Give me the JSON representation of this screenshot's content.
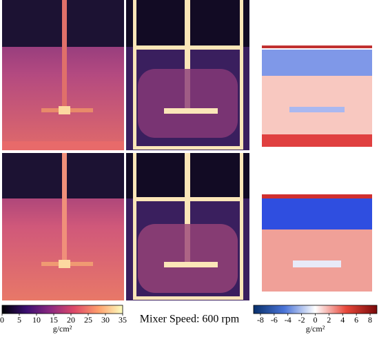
{
  "colorbars": [
    {
      "lim": [
        0,
        35
      ],
      "ticks": [
        0,
        5,
        10,
        15,
        20,
        25,
        30,
        35
      ],
      "label": "g/cm²"
    },
    {
      "lim": [
        -9,
        9
      ],
      "ticks": [
        -8,
        -6,
        -4,
        -2,
        0,
        2,
        4,
        6,
        8
      ],
      "label": "g/cm²"
    }
  ],
  "caption": "Mixer Speed: 600 rpm"
}
